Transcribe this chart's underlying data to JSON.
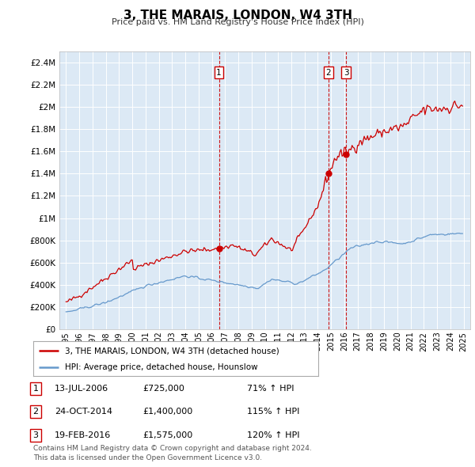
{
  "title": "3, THE MARAIS, LONDON, W4 3TH",
  "subtitle": "Price paid vs. HM Land Registry's House Price Index (HPI)",
  "bg_color": "#dce9f5",
  "red_color": "#cc0000",
  "blue_color": "#6699cc",
  "ylim": [
    0,
    2500000
  ],
  "yticks": [
    0,
    200000,
    400000,
    600000,
    800000,
    1000000,
    1200000,
    1400000,
    1600000,
    1800000,
    2000000,
    2200000,
    2400000
  ],
  "ytick_labels": [
    "£0",
    "£200K",
    "£400K",
    "£600K",
    "£800K",
    "£1M",
    "£1.2M",
    "£1.4M",
    "£1.6M",
    "£1.8M",
    "£2M",
    "£2.2M",
    "£2.4M"
  ],
  "sale_dates": [
    2006.54,
    2014.81,
    2016.13
  ],
  "sale_prices": [
    725000,
    1400000,
    1575000
  ],
  "sale_labels": [
    "1",
    "2",
    "3"
  ],
  "legend_red": "3, THE MARAIS, LONDON, W4 3TH (detached house)",
  "legend_blue": "HPI: Average price, detached house, Hounslow",
  "table": [
    {
      "label": "1",
      "date": "13-JUL-2006",
      "price": "£725,000",
      "hpi": "71% ↑ HPI"
    },
    {
      "label": "2",
      "date": "24-OCT-2014",
      "price": "£1,400,000",
      "hpi": "115% ↑ HPI"
    },
    {
      "label": "3",
      "date": "19-FEB-2016",
      "price": "£1,575,000",
      "hpi": "120% ↑ HPI"
    }
  ],
  "footer": "Contains HM Land Registry data © Crown copyright and database right 2024.\nThis data is licensed under the Open Government Licence v3.0.",
  "xlim_start": 1994.5,
  "xlim_end": 2025.5
}
